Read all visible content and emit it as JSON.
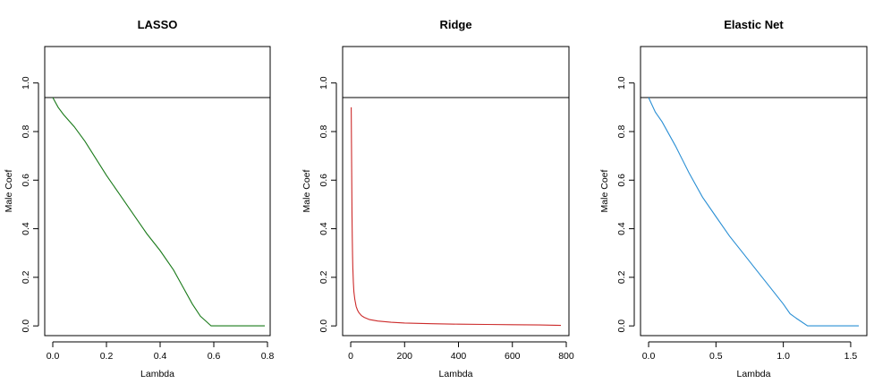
{
  "chart_data": [
    {
      "type": "line",
      "title": "LASSO",
      "xlabel": "Lambda",
      "ylabel": "Male Coef",
      "xlim": [
        -0.03,
        0.81
      ],
      "ylim": [
        -0.04,
        1.15
      ],
      "xticks": [
        0.0,
        0.2,
        0.4,
        0.6,
        0.8
      ],
      "xtick_labels": [
        "0.0",
        "0.2",
        "0.4",
        "0.6",
        "0.8"
      ],
      "yticks": [
        0.0,
        0.2,
        0.4,
        0.6,
        0.8,
        1.0
      ],
      "ytick_labels": [
        "0.0",
        "0.2",
        "0.4",
        "0.6",
        "0.8",
        "1.0"
      ],
      "hline": 0.94,
      "series": [
        {
          "color": "#1a7a1a",
          "x": [
            0.0,
            0.02,
            0.04,
            0.08,
            0.12,
            0.16,
            0.2,
            0.25,
            0.3,
            0.35,
            0.4,
            0.45,
            0.48,
            0.52,
            0.55,
            0.59,
            0.65,
            0.7,
            0.75,
            0.79
          ],
          "y": [
            0.94,
            0.9,
            0.87,
            0.82,
            0.76,
            0.69,
            0.62,
            0.54,
            0.46,
            0.38,
            0.31,
            0.23,
            0.17,
            0.09,
            0.04,
            0.0,
            0.0,
            0.0,
            0.0,
            0.0
          ]
        }
      ]
    },
    {
      "type": "line",
      "title": "Ridge",
      "xlabel": "Lambda",
      "ylabel": "Male Coef",
      "xlim": [
        -30,
        810
      ],
      "ylim": [
        -0.04,
        1.15
      ],
      "xticks": [
        0,
        200,
        400,
        600,
        800
      ],
      "xtick_labels": [
        "0",
        "200",
        "400",
        "600",
        "800"
      ],
      "yticks": [
        0.0,
        0.2,
        0.4,
        0.6,
        0.8,
        1.0
      ],
      "ytick_labels": [
        "0.0",
        "0.2",
        "0.4",
        "0.6",
        "0.8",
        "1.0"
      ],
      "hline": 0.94,
      "series": [
        {
          "color": "#cc2a2a",
          "x": [
            2,
            3,
            4,
            5,
            6,
            7,
            8,
            10,
            12,
            15,
            20,
            25,
            30,
            40,
            50,
            70,
            100,
            150,
            200,
            300,
            400,
            500,
            600,
            700,
            780
          ],
          "y": [
            0.9,
            0.75,
            0.6,
            0.45,
            0.36,
            0.29,
            0.24,
            0.18,
            0.14,
            0.11,
            0.08,
            0.065,
            0.055,
            0.042,
            0.035,
            0.026,
            0.02,
            0.015,
            0.012,
            0.009,
            0.007,
            0.006,
            0.005,
            0.004,
            0.002
          ]
        }
      ]
    },
    {
      "type": "line",
      "title": "Elastic Net",
      "xlabel": "Lambda",
      "ylabel": "Male Coef",
      "xlim": [
        -0.06,
        1.62
      ],
      "ylim": [
        -0.04,
        1.15
      ],
      "xticks": [
        0.0,
        0.5,
        1.0,
        1.5
      ],
      "xtick_labels": [
        "0.0",
        "0.5",
        "1.0",
        "1.5"
      ],
      "yticks": [
        0.0,
        0.2,
        0.4,
        0.6,
        0.8,
        1.0
      ],
      "ytick_labels": [
        "0.0",
        "0.2",
        "0.4",
        "0.6",
        "0.8",
        "1.0"
      ],
      "hline": 0.94,
      "series": [
        {
          "color": "#2a8fd4",
          "x": [
            0.0,
            0.05,
            0.1,
            0.2,
            0.3,
            0.4,
            0.5,
            0.6,
            0.7,
            0.8,
            0.9,
            1.0,
            1.05,
            1.1,
            1.18,
            1.3,
            1.4,
            1.5,
            1.56
          ],
          "y": [
            0.94,
            0.88,
            0.84,
            0.74,
            0.63,
            0.53,
            0.45,
            0.37,
            0.3,
            0.23,
            0.16,
            0.09,
            0.05,
            0.03,
            0.0,
            0.0,
            0.0,
            0.0,
            0.0
          ]
        }
      ]
    }
  ]
}
